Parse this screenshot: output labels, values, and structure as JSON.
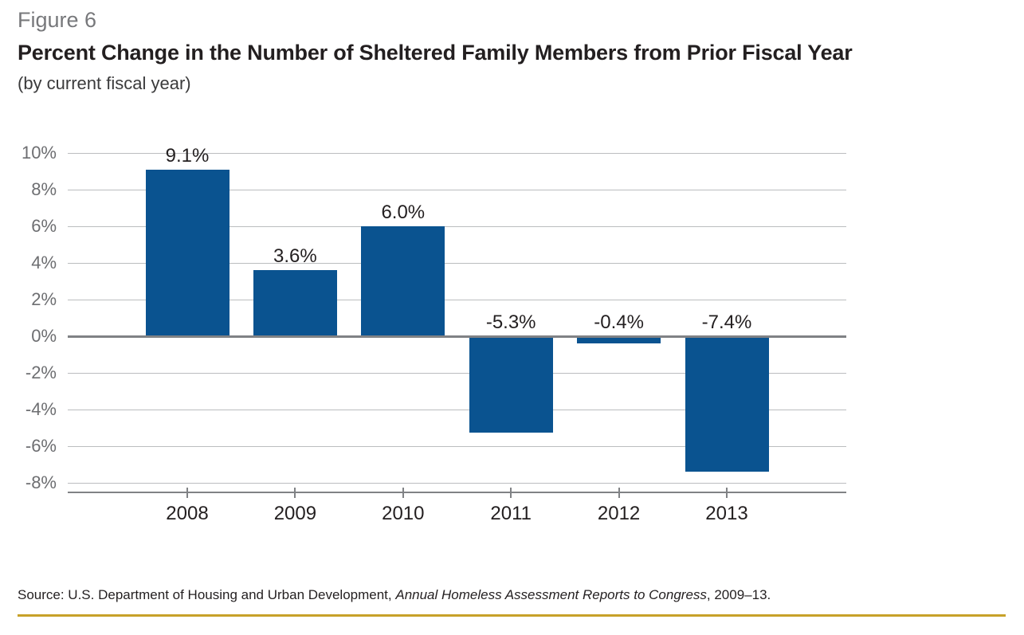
{
  "header": {
    "figure_label": "Figure 6",
    "title": "Percent Change in the Number of Sheltered Family Members from Prior Fiscal Year",
    "subtitle": "(by current fiscal year)"
  },
  "footer": {
    "source_prefix": "Source: U.S. Department of Housing and Urban Development, ",
    "source_italic": "Annual Homeless Assessment Reports to Congress",
    "source_suffix": ", 2009–13."
  },
  "colors": {
    "bar": "#0A5390",
    "gridline": "#BBBDBF",
    "zero_line": "#808285",
    "axis_line": "#808285",
    "figure_label_text": "#77787B",
    "title_text": "#231F20",
    "y_tick_label_text": "#6D6E71",
    "value_label_text": "#231F20",
    "gold_rule": "#C7A129"
  },
  "chart_data": {
    "type": "bar",
    "title": "Percent Change in the Number of Sheltered Family Members from Prior Fiscal Year",
    "subtitle": "(by current fiscal year)",
    "categories": [
      "2008",
      "2009",
      "2010",
      "2011",
      "2012",
      "2013"
    ],
    "values": [
      9.1,
      3.6,
      6.0,
      -5.3,
      -0.4,
      -7.4
    ],
    "value_labels": [
      "9.1%",
      "3.6%",
      "6.0%",
      "-5.3%",
      "-0.4%",
      "-7.4%"
    ],
    "xlabel": "",
    "ylabel": "",
    "y_axis": {
      "tick_values": [
        10,
        8,
        6,
        4,
        2,
        0,
        -2,
        -4,
        -6,
        -8
      ],
      "tick_labels": [
        "10%",
        "8%",
        "6%",
        "4%",
        "2%",
        "0%",
        "-2%",
        "-4%",
        "-6%",
        "-8%"
      ],
      "ylim": [
        -8.5,
        10
      ]
    },
    "grid": "horizontal",
    "legend": "none",
    "bar_color": "#0A5390"
  }
}
